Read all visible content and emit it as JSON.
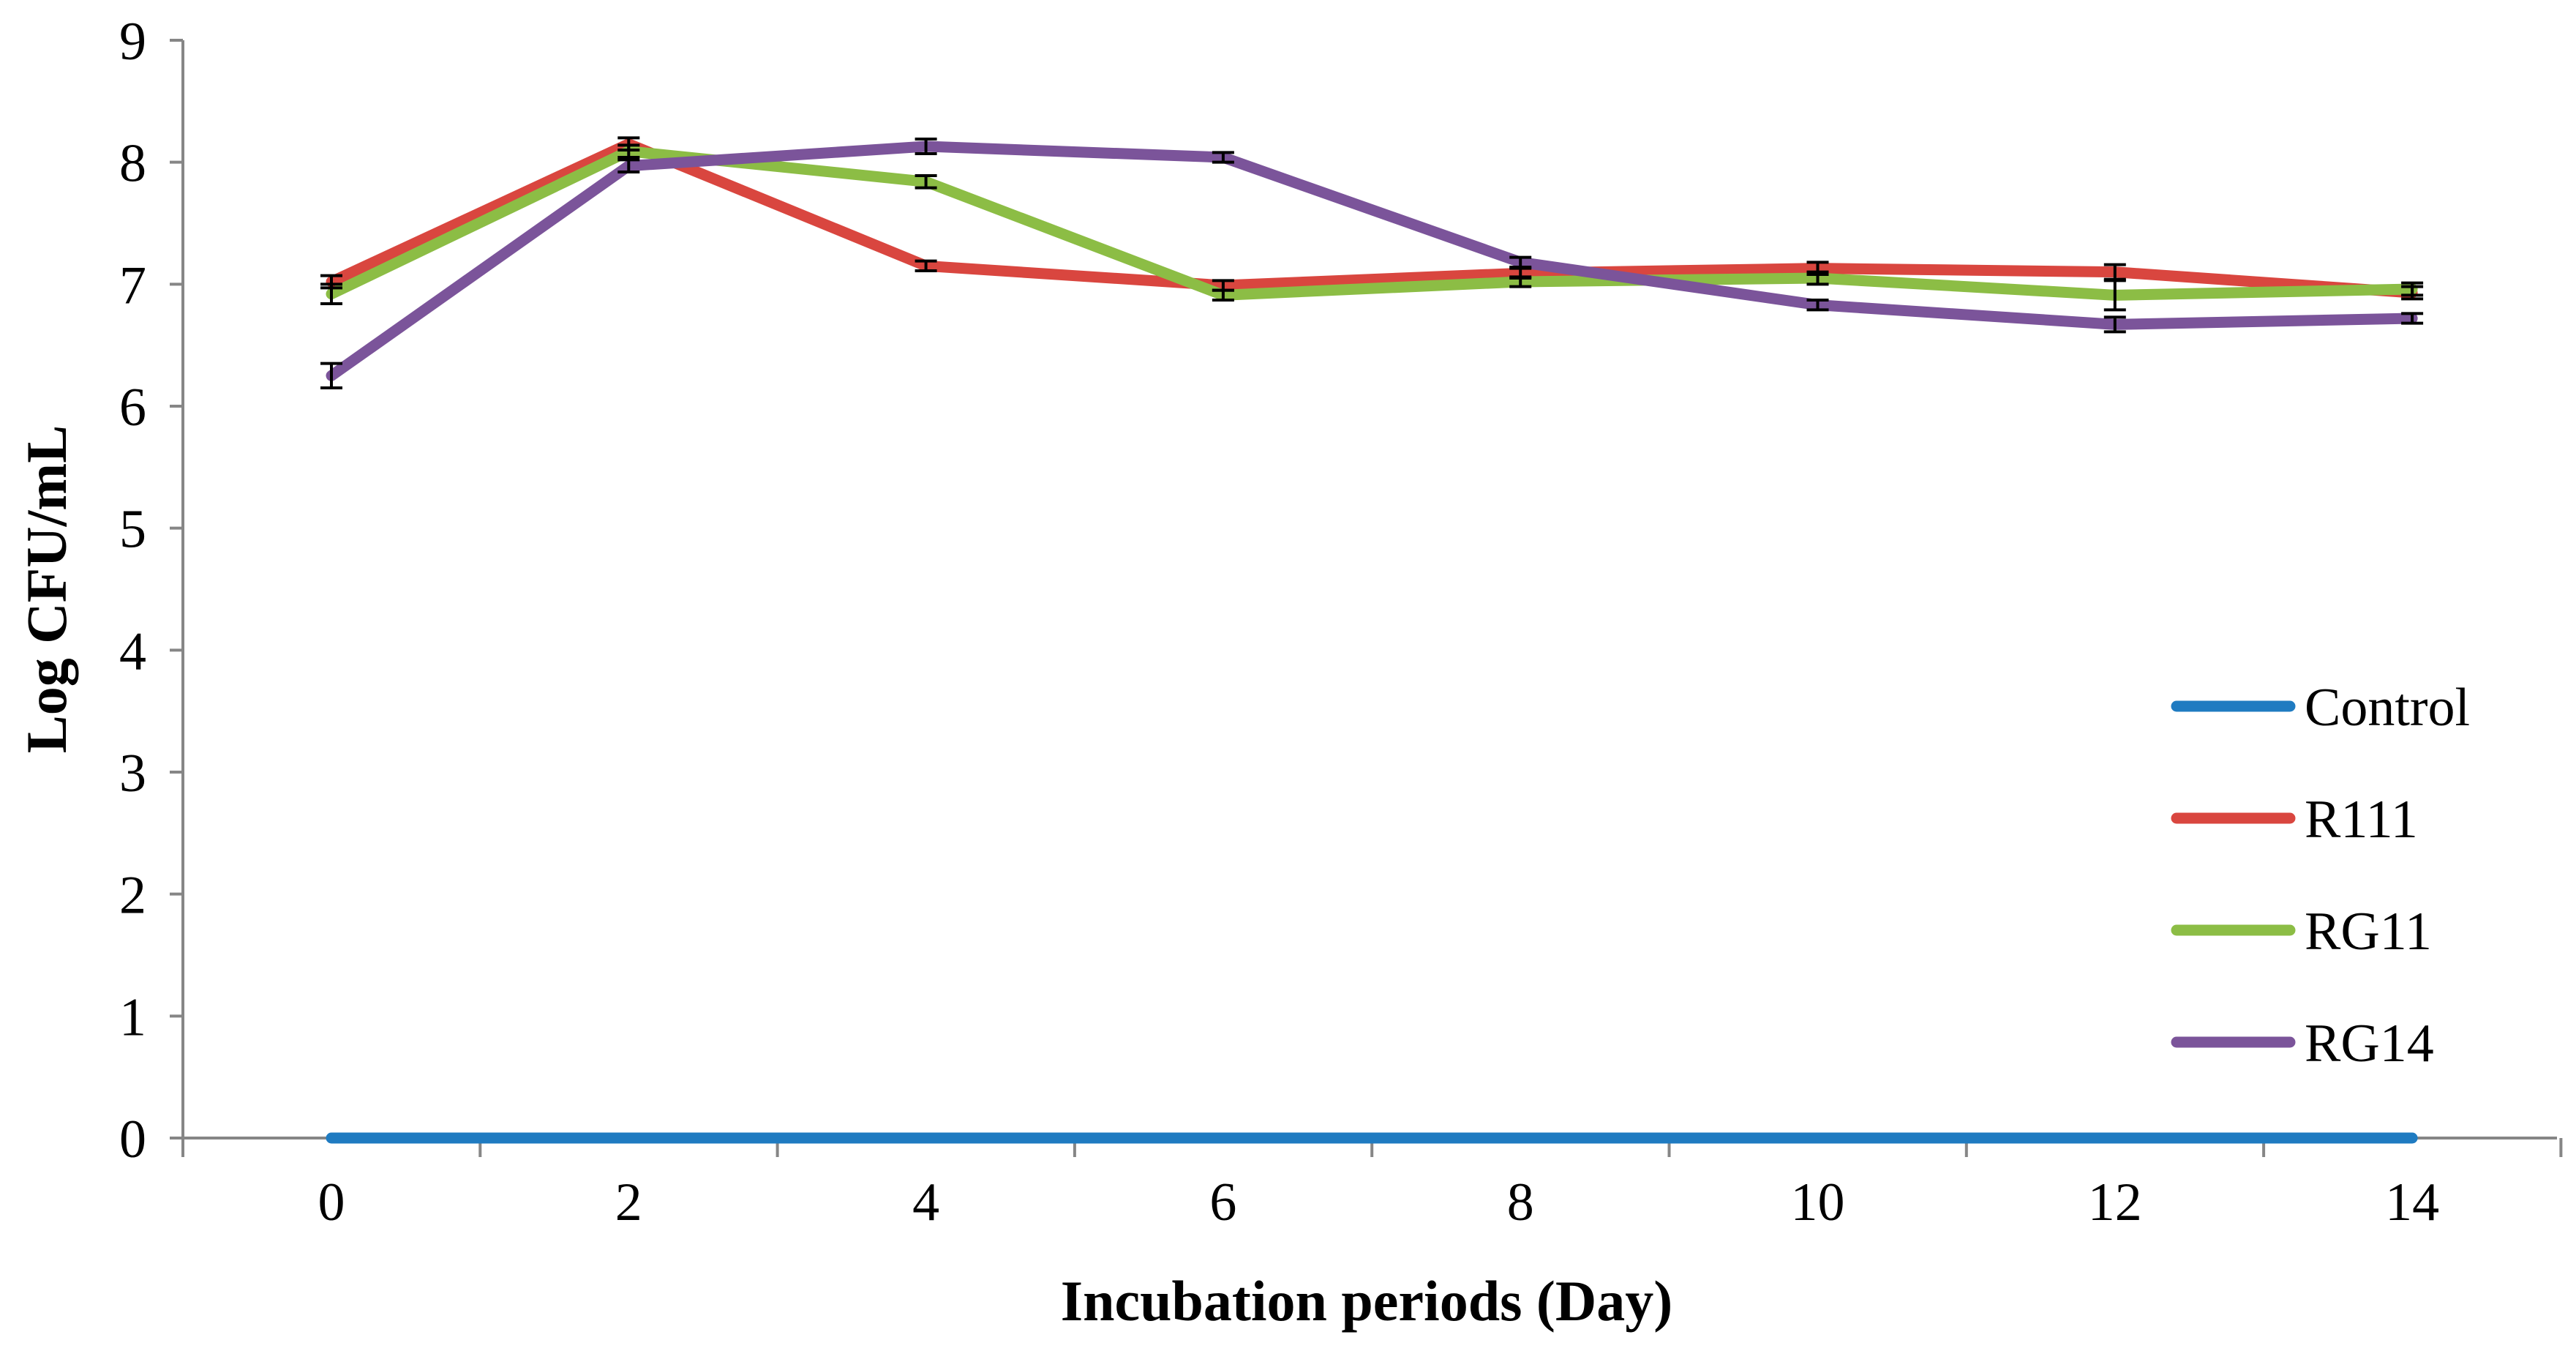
{
  "chart_data": {
    "type": "line",
    "title": "",
    "xlabel": "Incubation periods (Day)",
    "ylabel": "Log CFU/mL",
    "x": [
      0,
      2,
      4,
      6,
      8,
      10,
      12,
      14
    ],
    "x_tick_labels": [
      "0",
      "2",
      "4",
      "6",
      "8",
      "10",
      "12",
      "14"
    ],
    "y_tick_labels": [
      "0",
      "1",
      "2",
      "3",
      "4",
      "5",
      "6",
      "7",
      "8",
      "9"
    ],
    "ylim": [
      0,
      9
    ],
    "grid": false,
    "legend_position": "right",
    "series": [
      {
        "name": "Control",
        "color": "#1f7bc1",
        "values": [
          0,
          0,
          0,
          0,
          0,
          0,
          0,
          0
        ],
        "errors": [
          0,
          0,
          0,
          0,
          0,
          0,
          0,
          0
        ]
      },
      {
        "name": "R111",
        "color": "#d9463f",
        "values": [
          7.02,
          8.15,
          7.15,
          6.99,
          7.09,
          7.13,
          7.1,
          6.93
        ],
        "errors": [
          0.05,
          0.05,
          0.04,
          0.04,
          0.04,
          0.05,
          0.06,
          0.05
        ]
      },
      {
        "name": "RG11",
        "color": "#8cbd45",
        "values": [
          6.92,
          8.09,
          7.84,
          6.91,
          7.02,
          7.05,
          6.91,
          6.96
        ],
        "errors": [
          0.08,
          0.05,
          0.05,
          0.04,
          0.04,
          0.05,
          0.12,
          0.05
        ]
      },
      {
        "name": "RG14",
        "color": "#7b549a",
        "values": [
          6.25,
          7.97,
          8.13,
          8.04,
          7.18,
          6.83,
          6.67,
          6.72
        ],
        "errors": [
          0.1,
          0.05,
          0.06,
          0.04,
          0.04,
          0.04,
          0.06,
          0.04
        ]
      }
    ]
  }
}
